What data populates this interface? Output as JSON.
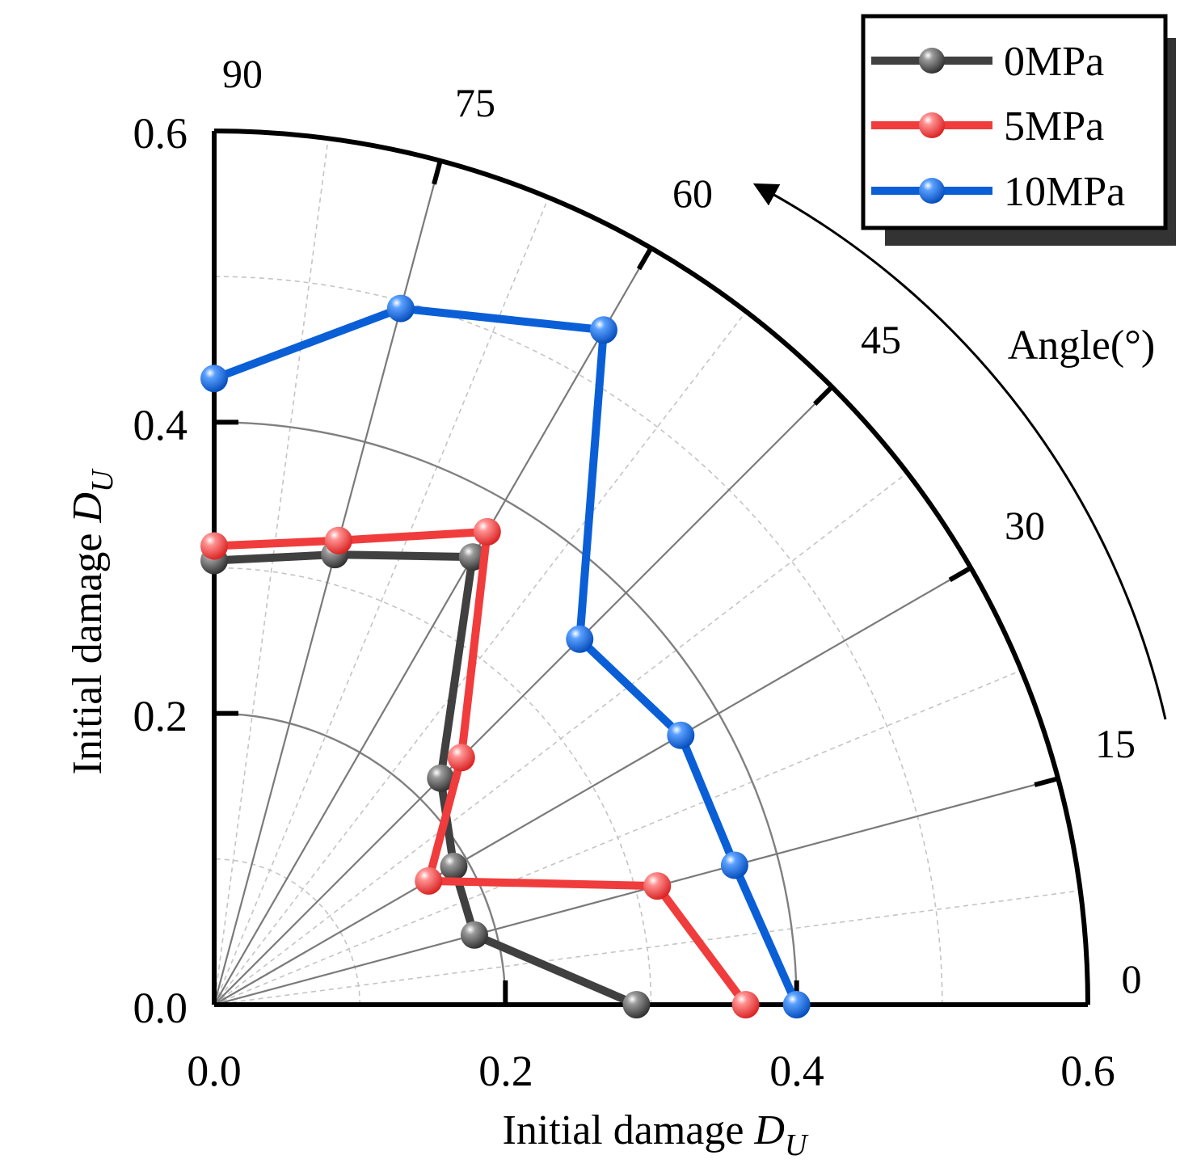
{
  "chart_data": {
    "type": "polar-scatter-line",
    "sector": "quarter (0-90 deg)",
    "radial_axis": {
      "min": 0.0,
      "max": 0.6,
      "ticks": [
        0.0,
        0.2,
        0.4,
        0.6
      ],
      "tick_labels": [
        "0.0",
        "0.2",
        "0.4",
        "0.6"
      ],
      "grid_major": [
        0.2,
        0.4
      ],
      "grid_minor": [
        0.1,
        0.3,
        0.5
      ]
    },
    "angular_axis": {
      "unit": "deg",
      "ticks": [
        0,
        15,
        30,
        45,
        60,
        75,
        90
      ],
      "tick_labels": [
        "0",
        "15",
        "30",
        "45",
        "60",
        "75",
        "90"
      ],
      "title": "Angle(°)",
      "direction": "counter-clockwise"
    },
    "xlabel": {
      "prefix": "Initial damage ",
      "symbol": "D",
      "subscript": "U"
    },
    "ylabel": {
      "prefix": "Initial damage ",
      "symbol": "D",
      "subscript": "U"
    },
    "legend": {
      "position": "top-right"
    },
    "series": [
      {
        "name": "0MPa",
        "color": "#404040",
        "angles": [
          0,
          15,
          30,
          45,
          60,
          75,
          90
        ],
        "values": [
          0.29,
          0.185,
          0.19,
          0.22,
          0.355,
          0.32,
          0.305
        ]
      },
      {
        "name": "5MPa",
        "color": "#f03c3c",
        "angles": [
          0,
          15,
          30,
          45,
          60,
          75,
          90
        ],
        "values": [
          0.365,
          0.315,
          0.17,
          0.24,
          0.375,
          0.33,
          0.315
        ]
      },
      {
        "name": "10MPa",
        "color": "#0a5fd7",
        "angles": [
          0,
          15,
          30,
          45,
          60,
          75,
          90
        ],
        "values": [
          0.4,
          0.37,
          0.37,
          0.355,
          0.535,
          0.495,
          0.43
        ]
      }
    ]
  }
}
